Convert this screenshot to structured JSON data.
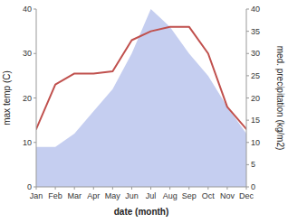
{
  "chart_data": {
    "type": "line",
    "categories": [
      "Jan",
      "Feb",
      "Mar",
      "Apr",
      "May",
      "Jun",
      "Jul",
      "Aug",
      "Sep",
      "Oct",
      "Nov",
      "Dec"
    ],
    "series": [
      {
        "type": "area",
        "axis": "y2",
        "color": "#c5cef0",
        "values": [
          9,
          9,
          12,
          17,
          22,
          30,
          40,
          36,
          30,
          25,
          18,
          12
        ]
      },
      {
        "type": "line",
        "color": "#c0504d",
        "values": [
          13,
          23,
          25.5,
          25.5,
          26,
          33,
          35,
          36,
          36,
          30,
          18,
          13
        ]
      }
    ],
    "xlabel": "date (month)",
    "ylabel": "max temp (C)",
    "y2label": "med. precipitation (kg/m2)",
    "ylim": [
      0,
      40
    ],
    "yticks": [
      0,
      10,
      20,
      30,
      40
    ],
    "y2lim": [
      0,
      40
    ],
    "y2ticks": [
      0,
      5,
      10,
      15,
      20,
      25,
      30,
      35,
      40
    ],
    "grid": false
  }
}
